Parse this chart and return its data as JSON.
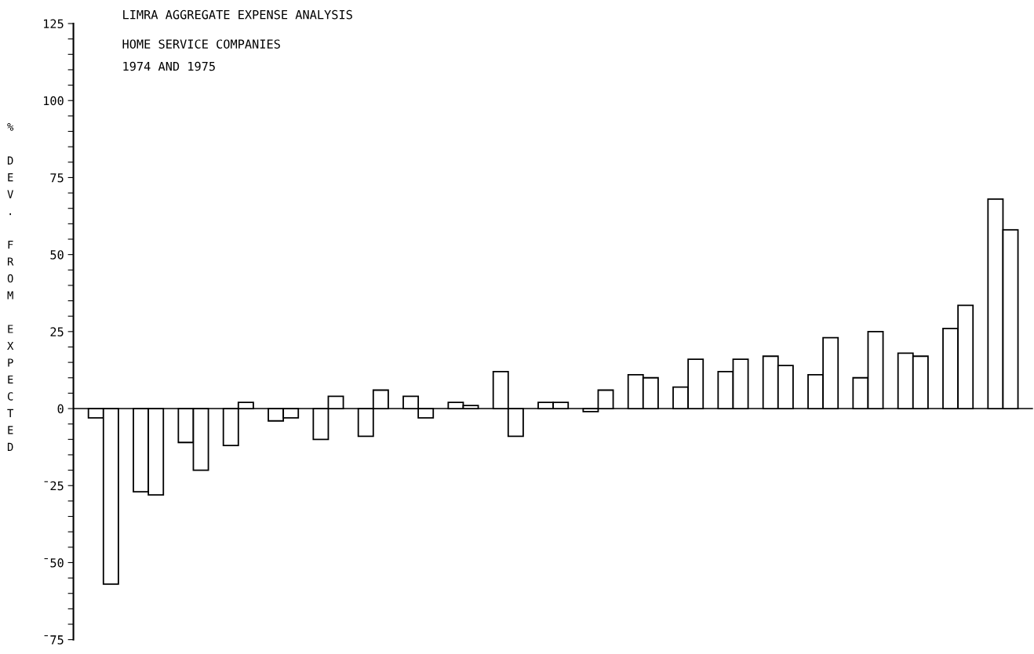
{
  "chart_data": {
    "type": "bar",
    "title": "LIMRA AGGREGATE EXPENSE ANALYSIS",
    "subtitle": "HOME SERVICE COMPANIES",
    "annotations": [
      "1974 AND 1975"
    ],
    "ylabel": "% DEV. FROM EXPECTED",
    "categories": [
      null,
      null,
      null,
      null,
      null,
      null,
      null,
      null,
      null,
      null,
      null,
      null,
      null,
      null,
      null,
      null,
      null,
      null,
      null,
      null,
      null
    ],
    "series": [
      {
        "color": "#ffffff",
        "values": [
          -3,
          -27,
          -11,
          -12,
          -4,
          -10,
          -9,
          4,
          2,
          12,
          2,
          -1,
          11,
          7,
          12,
          17,
          11,
          10,
          18,
          26,
          68
        ]
      },
      {
        "color": "#ffffff",
        "values": [
          -57,
          -28,
          -20,
          2,
          -3,
          4,
          6,
          -3,
          1,
          -9,
          2,
          6,
          10,
          16,
          16,
          14,
          23,
          25,
          17,
          33.5,
          58
        ]
      }
    ],
    "ylim": [
      -75,
      125
    ],
    "yticks": [
      {
        "value": -75,
        "label": "¯75"
      },
      {
        "value": -70,
        "label": null
      },
      {
        "value": -65,
        "label": null
      },
      {
        "value": -60,
        "label": null
      },
      {
        "value": -55,
        "label": null
      },
      {
        "value": -50,
        "label": "¯50"
      },
      {
        "value": -45,
        "label": null
      },
      {
        "value": -40,
        "label": null
      },
      {
        "value": -35,
        "label": null
      },
      {
        "value": -30,
        "label": null
      },
      {
        "value": -25,
        "label": "¯25"
      },
      {
        "value": -20,
        "label": null
      },
      {
        "value": -15,
        "label": null
      },
      {
        "value": -10,
        "label": null
      },
      {
        "value": -5,
        "label": null
      },
      0,
      {
        "value": 5,
        "label": null
      },
      {
        "value": 10,
        "label": null
      },
      {
        "value": 15,
        "label": null
      },
      {
        "value": 20,
        "label": null
      },
      25,
      {
        "value": 30,
        "label": null
      },
      {
        "value": 35,
        "label": null
      },
      {
        "value": 40,
        "label": null
      },
      {
        "value": 45,
        "label": null
      },
      50,
      {
        "value": 55,
        "label": null
      },
      {
        "value": 60,
        "label": null
      },
      {
        "value": 65,
        "label": null
      },
      {
        "value": 70,
        "label": null
      },
      75,
      {
        "value": 80,
        "label": null
      },
      {
        "value": 85,
        "label": null
      },
      {
        "value": 90,
        "label": null
      },
      {
        "value": 95,
        "label": null
      },
      100,
      {
        "value": 105,
        "label": null
      },
      {
        "value": 110,
        "label": null
      },
      {
        "value": 115,
        "label": null
      },
      {
        "value": 120,
        "label": null
      },
      125
    ],
    "ref_lines": [
      {
        "axis": "y",
        "value": 0,
        "color": "#000000"
      }
    ],
    "tick_labels": "y",
    "grid": false
  }
}
